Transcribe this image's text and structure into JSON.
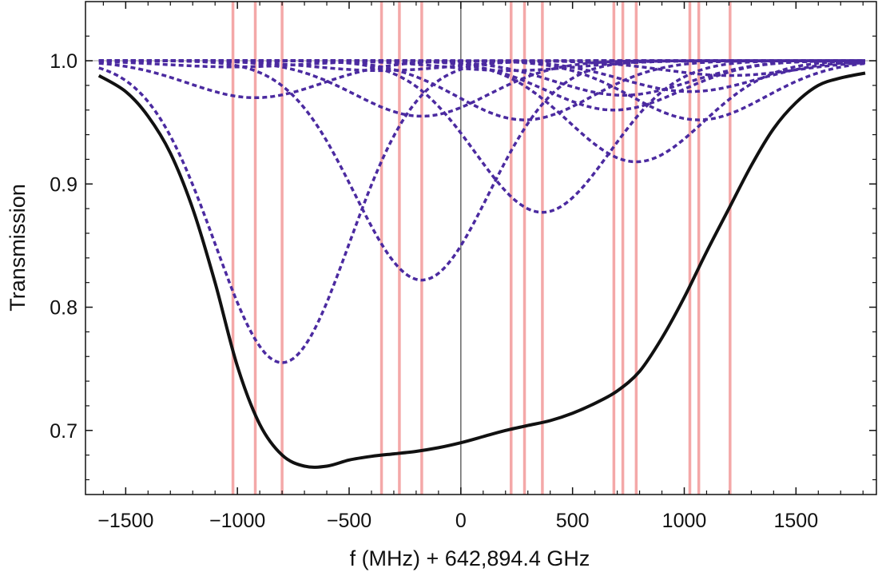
{
  "chart_data": {
    "type": "line",
    "title": "",
    "xlabel": "f (MHz) + 642,894.4 GHz",
    "ylabel": "Transmission",
    "xlim": [
      -1680,
      1860
    ],
    "ylim": [
      0.648,
      1.048
    ],
    "x_ticks": [
      -1500,
      -1000,
      -500,
      0,
      500,
      1000,
      1500
    ],
    "x_tick_labels": [
      "−1500",
      "−1000",
      "−500",
      "0",
      "500",
      "1000",
      "1500"
    ],
    "y_ticks": [
      0.7,
      0.8,
      0.9,
      1.0
    ],
    "y_tick_labels": [
      "0.7",
      "0.8",
      "0.9",
      "1.0"
    ],
    "x_range": [
      -1620,
      1810
    ],
    "grid": false,
    "reference_lines": {
      "y": 1.0,
      "x": 0
    },
    "line_positions": [
      -1020,
      -920,
      -800,
      -355,
      -275,
      -175,
      225,
      285,
      365,
      685,
      725,
      785,
      1025,
      1065,
      1205
    ],
    "components": [
      {
        "center": -800,
        "depth": 0.245,
        "width": 300
      },
      {
        "center": -175,
        "depth": 0.178,
        "width": 300
      },
      {
        "center": 365,
        "depth": 0.123,
        "width": 300
      },
      {
        "center": 785,
        "depth": 0.082,
        "width": 300
      },
      {
        "center": -920,
        "depth": 0.03,
        "width": 300
      },
      {
        "center": -175,
        "depth": 0.045,
        "width": 300
      },
      {
        "center": 285,
        "depth": 0.048,
        "width": 300
      },
      {
        "center": 685,
        "depth": 0.04,
        "width": 300
      },
      {
        "center": 1065,
        "depth": 0.048,
        "width": 300
      },
      {
        "center": -355,
        "depth": 0.008,
        "width": 300
      },
      {
        "center": 225,
        "depth": 0.008,
        "width": 300
      },
      {
        "center": 725,
        "depth": 0.028,
        "width": 300
      },
      {
        "center": 1025,
        "depth": 0.025,
        "width": 300
      },
      {
        "center": 1205,
        "depth": 0.012,
        "width": 300
      },
      {
        "center": -1020,
        "depth": 0.005,
        "width": 300
      }
    ],
    "total_curve": {
      "x": [
        -1620,
        -1500,
        -1400,
        -1300,
        -1200,
        -1100,
        -1000,
        -900,
        -800,
        -700,
        -600,
        -500,
        -400,
        -300,
        -200,
        -100,
        0,
        100,
        200,
        300,
        400,
        500,
        600,
        700,
        800,
        900,
        1000,
        1100,
        1200,
        1300,
        1400,
        1500,
        1600,
        1700,
        1810
      ],
      "y": [
        0.988,
        0.975,
        0.955,
        0.925,
        0.88,
        0.82,
        0.752,
        0.705,
        0.68,
        0.671,
        0.671,
        0.676,
        0.679,
        0.681,
        0.683,
        0.686,
        0.69,
        0.695,
        0.7,
        0.704,
        0.708,
        0.714,
        0.722,
        0.732,
        0.748,
        0.775,
        0.808,
        0.845,
        0.88,
        0.915,
        0.945,
        0.966,
        0.98,
        0.986,
        0.99
      ]
    },
    "colors": {
      "total": "#111111",
      "components": "#4b2aa0",
      "lines": "#f4a8a8",
      "reference_h": "#bbbbbb",
      "reference_v": "#666666",
      "frame": "#111111"
    }
  }
}
